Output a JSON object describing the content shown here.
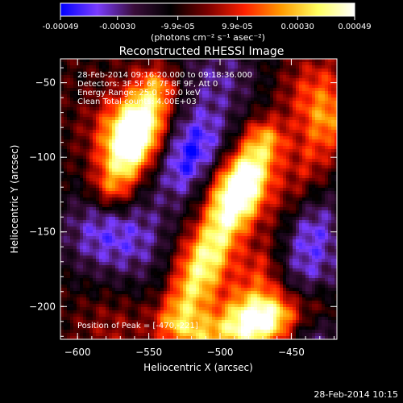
{
  "footer_timestamp": "28-Feb-2014 10:15",
  "colorbar": {
    "tick_labels": [
      "-0.00049",
      "-0.00030",
      "-9.9e-05",
      "9.9e-05",
      "0.00030",
      "0.00049"
    ],
    "tick_values": [
      -0.00049,
      -0.0003,
      -9.9e-05,
      9.9e-05,
      0.0003,
      0.00049
    ],
    "range": [
      -0.00049,
      0.00049
    ],
    "unit_label": "(photons cm⁻² s⁻¹ asec⁻²)",
    "colors": [
      "#0000ff",
      "#7a3cff",
      "#3a0d3a",
      "#000000",
      "#7a0000",
      "#ff2000",
      "#ff9a00",
      "#ffff60",
      "#ffffff"
    ]
  },
  "chart_data": {
    "type": "heatmap",
    "title": "Reconstructed RHESSI Image",
    "xlabel": "Heliocentric X (arcsec)",
    "ylabel": "Heliocentric Y (arcsec)",
    "xlim": [
      -612,
      -418
    ],
    "ylim": [
      -222,
      -34
    ],
    "x_ticks": [
      -600,
      -550,
      -500,
      -450
    ],
    "x_tick_labels": [
      "−600",
      "−550",
      "−500",
      "−450"
    ],
    "y_ticks": [
      -50,
      -100,
      -150,
      -200
    ],
    "y_tick_labels": [
      "−50",
      "−100",
      "−150",
      "−200"
    ],
    "annotations": [
      "28-Feb-2014 09:16:20.000 to 09:18:36.000",
      "Detectors: 3F 5F 6F 7F 8F 9F, Att 0",
      "Energy Range: 25.0 - 50.0 keV",
      "Clean     Total counts: 4.00E+03"
    ],
    "peak_label": "Position of Peak = [-470,-221]",
    "peak": [
      -470,
      -221
    ],
    "value_range": [
      -0.00049,
      0.00049
    ],
    "sources": [
      {
        "x": -560,
        "y": -85,
        "value": 0.00049
      },
      {
        "x": -490,
        "y": -120,
        "value": 0.00045
      },
      {
        "x": -470,
        "y": -205,
        "value": 0.00049
      },
      {
        "x": -430,
        "y": -60,
        "value": 0.00025
      },
      {
        "x": -520,
        "y": -165,
        "value": 0.0002
      },
      {
        "x": -575,
        "y": -215,
        "value": 0.0001
      }
    ],
    "ridges": [
      {
        "x1": -575,
        "y1": -120,
        "x2": -545,
        "y2": -55,
        "value": 0.00035
      },
      {
        "x1": -530,
        "y1": -210,
        "x2": -470,
        "y2": -90,
        "value": 0.00038
      },
      {
        "x1": -470,
        "y1": -170,
        "x2": -425,
        "y2": -80,
        "value": 0.00018
      },
      {
        "x1": -510,
        "y1": -220,
        "x2": -430,
        "y2": -200,
        "value": 0.0003
      }
    ],
    "sinks": [
      {
        "x": -520,
        "y": -100,
        "value": -0.00045
      },
      {
        "x": -440,
        "y": -150,
        "value": -0.0003
      },
      {
        "x": -585,
        "y": -150,
        "value": -0.00025
      },
      {
        "x": -440,
        "y": -205,
        "value": -0.00035
      },
      {
        "x": -500,
        "y": -45,
        "value": -0.0002
      },
      {
        "x": -545,
        "y": -160,
        "value": -0.0002
      }
    ]
  }
}
